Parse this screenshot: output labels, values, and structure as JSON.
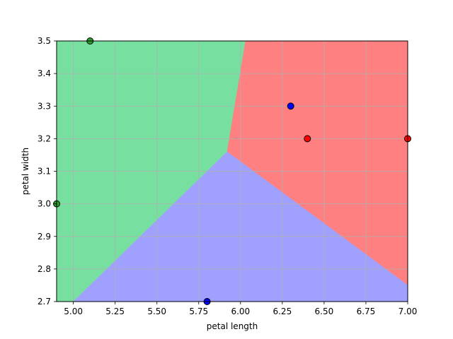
{
  "chart_data": {
    "type": "scatter",
    "title": "",
    "xlabel": "petal length",
    "ylabel": "petal width",
    "xlim": [
      4.9,
      7.0
    ],
    "ylim": [
      2.7,
      3.5
    ],
    "x_ticks": [
      5.0,
      5.25,
      5.5,
      5.75,
      6.0,
      6.25,
      6.5,
      6.75,
      7.0
    ],
    "x_tick_labels": [
      "5.00",
      "5.25",
      "5.50",
      "5.75",
      "6.00",
      "6.25",
      "6.50",
      "6.75",
      "7.00"
    ],
    "y_ticks": [
      2.7,
      2.8,
      2.9,
      3.0,
      3.1,
      3.2,
      3.3,
      3.4,
      3.5
    ],
    "y_tick_labels": [
      "2.7",
      "2.8",
      "2.9",
      "3.0",
      "3.1",
      "3.2",
      "3.3",
      "3.4",
      "3.5"
    ],
    "grid": true,
    "regions": [
      {
        "class": "green",
        "color": "#77e0a0",
        "polygon": [
          [
            4.9,
            2.7
          ],
          [
            5.0,
            2.7
          ],
          [
            5.92,
            3.16
          ],
          [
            6.03,
            3.5
          ],
          [
            4.9,
            3.5
          ]
        ]
      },
      {
        "class": "red",
        "color": "#ff8080",
        "polygon": [
          [
            6.03,
            3.5
          ],
          [
            7.0,
            3.5
          ],
          [
            7.0,
            2.75
          ],
          [
            5.92,
            3.16
          ]
        ]
      },
      {
        "class": "blue",
        "color": "#a0a0ff",
        "polygon": [
          [
            5.0,
            2.7
          ],
          [
            7.0,
            2.7
          ],
          [
            7.0,
            2.75
          ],
          [
            5.92,
            3.16
          ]
        ]
      }
    ],
    "points": [
      {
        "x": 5.1,
        "y": 3.5,
        "class": "green",
        "color": "#2ca02c"
      },
      {
        "x": 4.9,
        "y": 3.0,
        "class": "green",
        "color": "#2ca02c"
      },
      {
        "x": 6.3,
        "y": 3.3,
        "class": "blue",
        "color": "#0000ff"
      },
      {
        "x": 5.8,
        "y": 2.7,
        "class": "blue",
        "color": "#0000ff"
      },
      {
        "x": 6.4,
        "y": 3.2,
        "class": "red",
        "color": "#ff0000"
      },
      {
        "x": 7.0,
        "y": 3.2,
        "class": "red",
        "color": "#ff0000"
      }
    ]
  }
}
